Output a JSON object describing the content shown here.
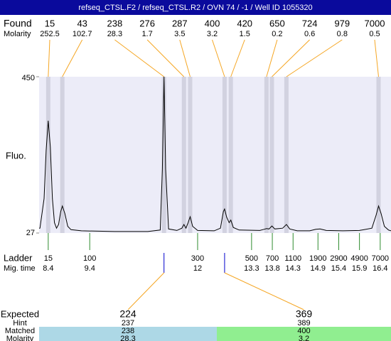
{
  "chart_data": {
    "type": "electropherogram",
    "title": "refseq_CTSL.F2 / refseq_CTSL.R2 / OVN 74 / -1 / Well ID 1055320",
    "ylabel": "Fluo.",
    "ylim": [
      27,
      450
    ],
    "yticks": [
      27,
      450
    ],
    "xlim": [
      8.18,
      16.66
    ],
    "found": {
      "label": "Found",
      "molarity_label": "Molarity",
      "sizes": [
        15,
        43,
        238,
        276,
        287,
        400,
        420,
        650,
        724,
        979,
        7000
      ],
      "molarity": [
        252.5,
        102.7,
        28.3,
        1.7,
        3.5,
        3.2,
        1.5,
        0.2,
        0.6,
        0.8,
        0.5
      ],
      "x": [
        8.4,
        8.74,
        11.19,
        11.67,
        11.82,
        12.65,
        12.8,
        13.66,
        13.79,
        14.14,
        16.36
      ],
      "color": "#f5a623"
    },
    "ladder": {
      "label": "Ladder",
      "time_label": "Mig. time",
      "sizes": [
        15,
        100,
        300,
        500,
        700,
        1100,
        1900,
        2900,
        4900,
        7000
      ],
      "x": [
        8.4,
        9.4,
        12,
        13.3,
        13.8,
        14.3,
        14.9,
        15.4,
        15.9,
        16.4
      ],
      "color": "#2e8b2e"
    },
    "trace": {
      "color": "#000000",
      "x": [
        8.2,
        8.3,
        8.35,
        8.4,
        8.45,
        8.5,
        8.55,
        8.6,
        8.65,
        8.7,
        8.74,
        8.8,
        8.87,
        8.95,
        9.2,
        10,
        10.8,
        11.1,
        11.15,
        11.19,
        11.23,
        11.3,
        11.5,
        11.62,
        11.67,
        11.72,
        11.77,
        11.82,
        11.88,
        12.0,
        12.4,
        12.55,
        12.62,
        12.65,
        12.7,
        12.76,
        12.8,
        12.86,
        13.0,
        13.5,
        13.6,
        13.66,
        13.72,
        13.79,
        13.86,
        14.05,
        14.14,
        14.22,
        14.4,
        14.7,
        14.85,
        14.95,
        15.1,
        15.5,
        15.9,
        16.2,
        16.3,
        16.36,
        16.42,
        16.5,
        16.6,
        16.66
      ],
      "values": [
        40,
        120,
        250,
        331,
        260,
        120,
        55,
        40,
        50,
        85,
        100,
        80,
        45,
        36,
        33,
        31,
        31,
        35,
        200,
        450,
        200,
        38,
        34,
        40,
        50,
        40,
        55,
        71,
        45,
        34,
        33,
        40,
        85,
        92,
        70,
        55,
        62,
        42,
        35,
        34,
        37,
        39,
        38,
        46,
        38,
        40,
        50,
        38,
        33,
        33,
        37,
        38,
        34,
        33,
        34,
        40,
        75,
        100,
        80,
        45,
        35,
        33
      ]
    },
    "expected": {
      "labels": [
        "Expected",
        "Hint",
        "Matched",
        "Molarity"
      ],
      "columns": [
        {
          "expected": 224,
          "hint": 237,
          "matched": 238,
          "molarity": 28.3,
          "color": "#add8e6"
        },
        {
          "expected": 369,
          "hint": 389,
          "matched": 400,
          "molarity": 3.2,
          "color": "#90ee90"
        }
      ]
    }
  }
}
